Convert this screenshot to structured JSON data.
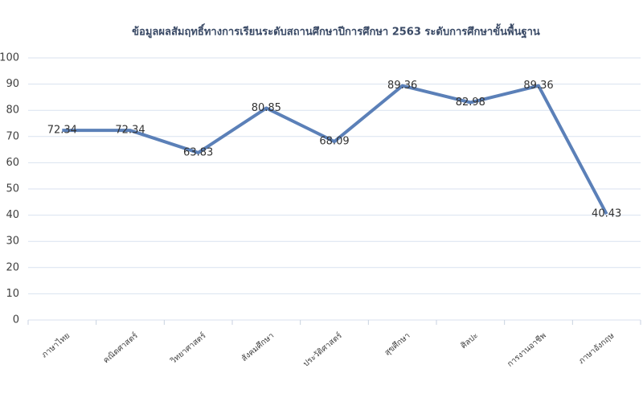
{
  "chart_data": {
    "type": "line",
    "title": "ข้อมูลผลสัมฤทธิ์ทางการเรียนระดับสถานศึกษาปีการศึกษา 2563 ระดับการศึกษาขั้นพื้นฐาน",
    "categories": [
      "ภาษาไทย",
      "คณิตศาสตร์",
      "วิทยาศาสตร์",
      "สังคมศึกษา",
      "ประวัติศาสตร์",
      "สุขศึกษา",
      "ศิลปะ",
      "การงานอาชีพ",
      "ภาษาอังกฤษ"
    ],
    "series": [
      {
        "name": "ผลสัมฤทธิ์",
        "color": "#5b80b8",
        "values": [
          72.34,
          72.34,
          63.83,
          80.85,
          68.09,
          89.36,
          82.98,
          89.36,
          40.43
        ]
      }
    ],
    "ylim": [
      0,
      100
    ],
    "yticks": [
      0,
      10,
      20,
      30,
      40,
      50,
      60,
      70,
      80,
      90,
      100
    ],
    "grid": true
  }
}
